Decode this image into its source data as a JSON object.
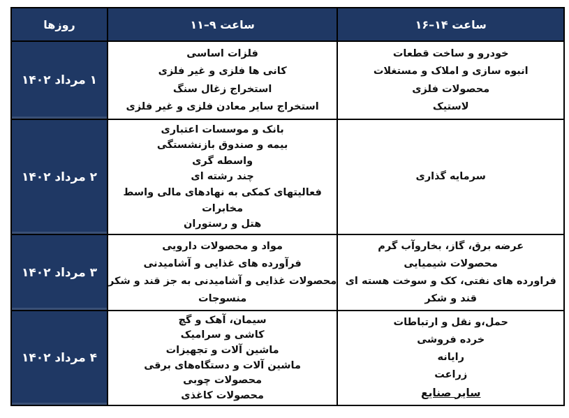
{
  "colors": {
    "header_bg": "#1f3864",
    "header_text": "#ffffff",
    "body_text": "#111111",
    "border_color": "#000000",
    "cell_bg": "#ffffff",
    "page_bg": "#ffffff"
  },
  "table": {
    "header": {
      "days_label": "روزها",
      "morning_label": "ساعت ۹–۱۱",
      "afternoon_label": "ساعت ۱۴–۱۶"
    },
    "rows": [
      {
        "day": "۱ مرداد ۱۴۰۲",
        "morning": [
          "فلزات اساسی",
          "کانی ها فلزی و غیر فلزی",
          "استخراج زغال سنگ",
          "استخراج سایر معادن فلزی و غیر فلزی"
        ],
        "afternoon": [
          "خودرو و ساخت قطعات",
          "انبوه سازی و املاک و مستغلات",
          "محصولات فلزی",
          "لاستیک"
        ]
      },
      {
        "day": "۲ مرداد ۱۴۰۲",
        "morning": [
          "بانک و موسسات اعتباری",
          "بیمه و صندوق بازنشستگی",
          "واسطه گری",
          "چند رشته ای",
          "فعالیتهای کمکی به نهادهای مالی واسط",
          "مخابرات",
          "هتل و رستوران"
        ],
        "afternoon": [
          "سرمایه گذاری"
        ]
      },
      {
        "day": "۳ مرداد ۱۴۰۲",
        "morning": [
          "مواد و محصولات دارویی",
          "فرآورده های غذایی و آشامیدنی",
          "محصولات غذایی و آشامیدنی به جز قند و شکر",
          "منسوجات"
        ],
        "afternoon": [
          "عرضه برق، گاز، بخاروآب گرم",
          "محصولات شیمیایی",
          "فراورده های نفتی، کک و سوخت هسته ای",
          "قند و شکر"
        ]
      },
      {
        "day": "۴ مرداد ۱۴۰۲",
        "morning": [
          "سیمان، آهک و گچ",
          "کاشی و سرامیک",
          "ماشین آلات و تجهیزات",
          "ماشین آلات و دستگاه‌های برقی",
          "محصولات چوبی",
          "محصولات کاغذی"
        ],
        "afternoon": [
          "حمل،و نقل و ارتباطات",
          "خرده فروشی",
          "رایانه",
          "زراعت",
          "سایر صنایع"
        ]
      }
    ]
  }
}
